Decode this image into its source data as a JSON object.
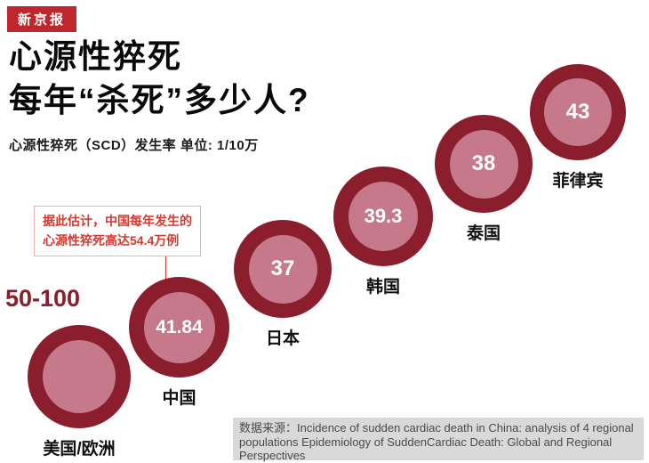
{
  "logo": {
    "text": "新京报"
  },
  "header": {
    "title_line1": "心源性猝死",
    "title_line2": "每年“杀死”多少人?",
    "subtitle": "心源性猝死（SCD）发生率 单位: 1/10万"
  },
  "annotation": {
    "line1": "据此估计，中国每年发生的",
    "line2": "心源性猝死高达54.4万例"
  },
  "source": {
    "text": "数据来源：Incidence of sudden cardiac death in China: analysis of 4 regional populations Epidemiology of SuddenCardiac Death: Global and Regional Perspectives"
  },
  "colors": {
    "outer_circle": "#8b1e2d",
    "inner_circle": "#c5798a",
    "accent_red": "#d5392e",
    "logo_bg": "#c0272d",
    "source_bg": "#d9d9d9"
  },
  "chart_data": {
    "type": "scatter",
    "style": "stepped-bubbles-ascending",
    "title": "心源性猝死 每年“杀死”多少人?",
    "subtitle": "心源性猝死（SCD）发生率",
    "unit": "1/10万",
    "legend": "none",
    "categories": [
      "美国/欧洲",
      "中国",
      "日本",
      "韩国",
      "泰国",
      "菲律宾"
    ],
    "values": [
      "50-100",
      41.84,
      37,
      39.3,
      38,
      43
    ],
    "points": [
      {
        "category": "美国/欧洲",
        "value_label": "50-100",
        "value_min": 50,
        "value_max": 100,
        "label_inside": false
      },
      {
        "category": "中国",
        "value_label": "41.84",
        "value": 41.84,
        "label_inside": true
      },
      {
        "category": "日本",
        "value_label": "37",
        "value": 37,
        "label_inside": true
      },
      {
        "category": "韩国",
        "value_label": "39.3",
        "value": 39.3,
        "label_inside": true
      },
      {
        "category": "泰国",
        "value_label": "38",
        "value": 38,
        "label_inside": true
      },
      {
        "category": "菲律宾",
        "value_label": "43",
        "value": 43,
        "label_inside": true
      }
    ],
    "annotation": "据此估计，中国每年发生的心源性猝死高达54.4万例",
    "source": "Incidence of sudden cardiac death in China: analysis of 4 regional populations Epidemiology of SuddenCardiac Death: Global and Regional Perspectives"
  }
}
